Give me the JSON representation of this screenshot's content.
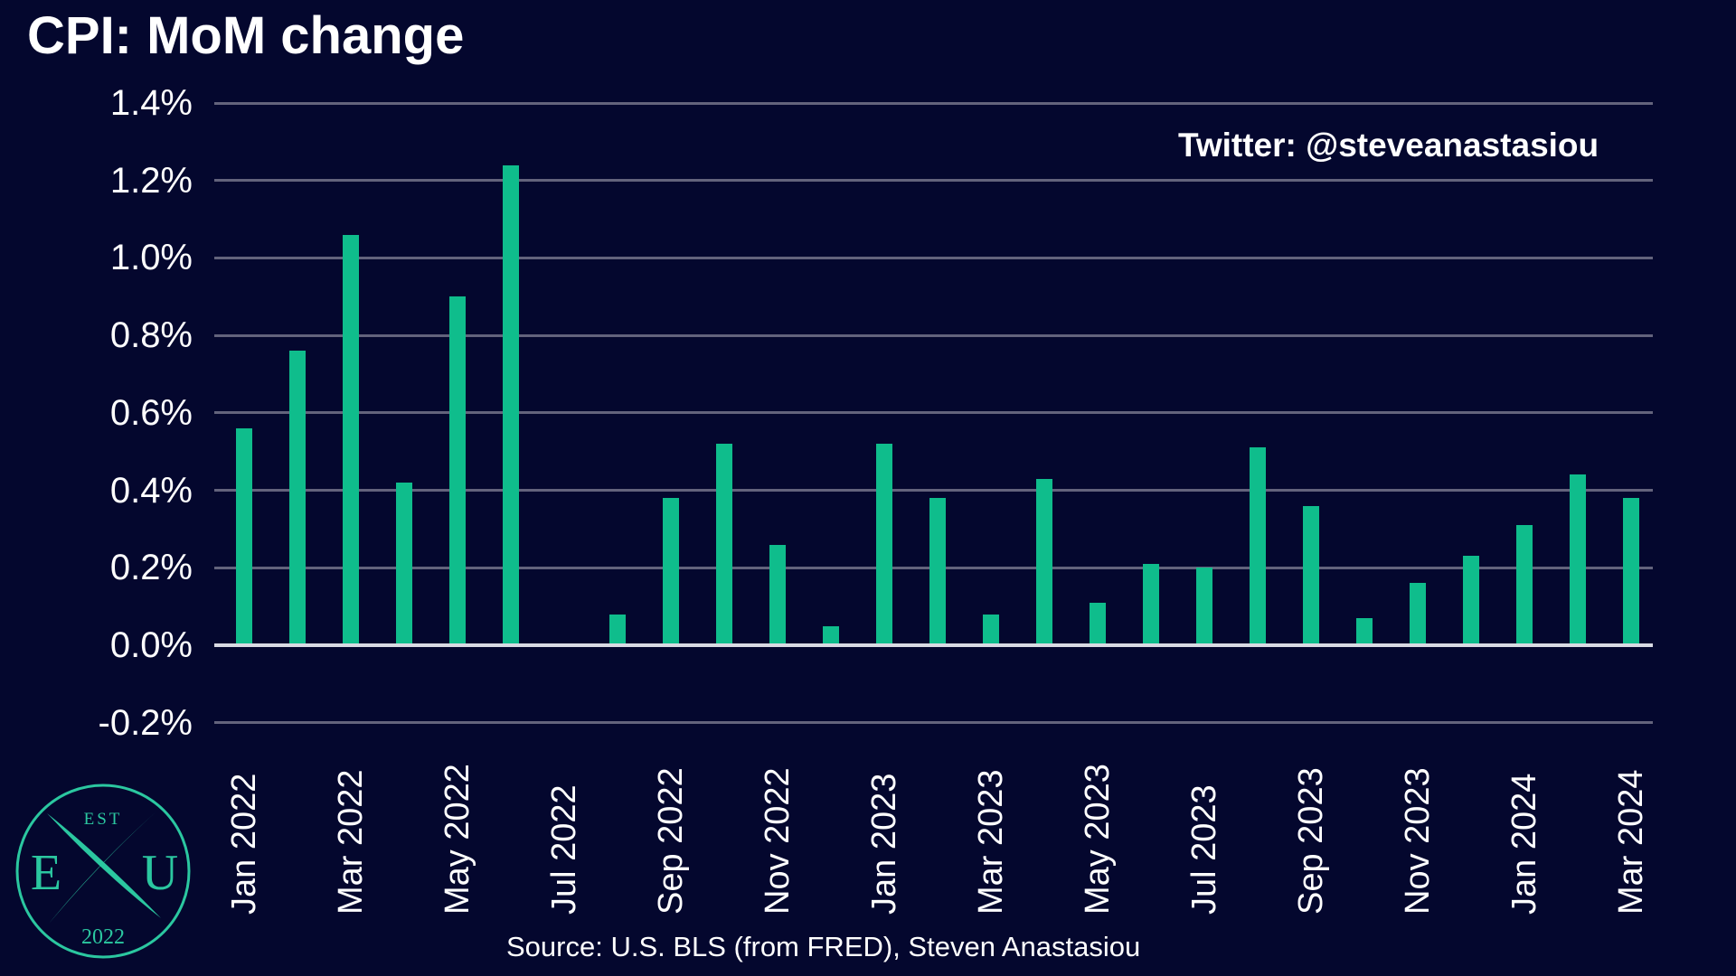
{
  "header": {
    "title": "CPI: MoM change",
    "annotation": "Twitter: @steveanastasiou"
  },
  "footer": {
    "source": "Source: U.S. BLS (from FRED), Steven Anastasiou"
  },
  "logo": {
    "top_text": "EST",
    "left_letter": "E",
    "right_letter": "U",
    "bottom_text": "2022"
  },
  "colors": {
    "background": "#04072e",
    "bar": "#0fbd8c",
    "gridline": "#63637c",
    "zero_line": "#d9dae3",
    "logo_green": "#2bc7a0",
    "text": "#ffffff"
  },
  "chart_data": {
    "type": "bar",
    "title": "CPI: MoM change",
    "xlabel": "",
    "ylabel": "",
    "unit": "%",
    "ylim": [
      -0.2,
      1.4
    ],
    "grid": true,
    "legend": "none",
    "categories": [
      "Jan 2022",
      "Feb 2022",
      "Mar 2022",
      "Apr 2022",
      "May 2022",
      "Jun 2022",
      "Jul 2022",
      "Aug 2022",
      "Sep 2022",
      "Oct 2022",
      "Nov 2022",
      "Dec 2022",
      "Jan 2023",
      "Feb 2023",
      "Mar 2023",
      "Apr 2023",
      "May 2023",
      "Jun 2023",
      "Jul 2023",
      "Aug 2023",
      "Sep 2023",
      "Oct 2023",
      "Nov 2023",
      "Dec 2023",
      "Jan 2024",
      "Feb 2024",
      "Mar 2024"
    ],
    "values": [
      0.56,
      0.76,
      1.06,
      0.42,
      0.9,
      1.24,
      0.0,
      0.08,
      0.38,
      0.52,
      0.26,
      0.05,
      0.52,
      0.38,
      0.08,
      0.43,
      0.11,
      0.21,
      0.2,
      0.51,
      0.36,
      0.07,
      0.16,
      0.23,
      0.31,
      0.44,
      0.38
    ],
    "x_tick_labels": [
      "Jan 2022",
      "Mar 2022",
      "May 2022",
      "Jul 2022",
      "Sep 2022",
      "Nov 2022",
      "Jan 2023",
      "Mar 2023",
      "May 2023",
      "Jul 2023",
      "Sep 2023",
      "Nov 2023",
      "Jan 2024",
      "Mar 2024"
    ],
    "x_tick_every": 2,
    "y_ticks": [
      {
        "label": "1.4%",
        "value": 1.4
      },
      {
        "label": "1.2%",
        "value": 1.2
      },
      {
        "label": "1.0%",
        "value": 1.0
      },
      {
        "label": "0.8%",
        "value": 0.8
      },
      {
        "label": "0.6%",
        "value": 0.6
      },
      {
        "label": "0.4%",
        "value": 0.4
      },
      {
        "label": "0.2%",
        "value": 0.2
      },
      {
        "label": "0.0%",
        "value": 0.0
      },
      {
        "label": "-0.2%",
        "value": -0.2
      }
    ]
  }
}
